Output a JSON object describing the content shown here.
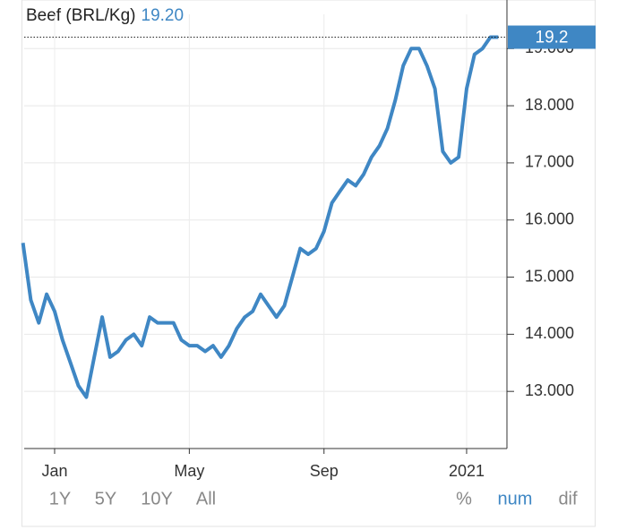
{
  "chart_data": {
    "type": "line",
    "title": "Beef (BRL/Kg)",
    "subtitle": "19.20",
    "last_label": {
      "value": 19.2,
      "label": "19.2"
    },
    "categories": [
      null,
      null,
      null,
      null,
      "Jan",
      null,
      null,
      null,
      null,
      null,
      null,
      null,
      null,
      null,
      null,
      null,
      null,
      null,
      null,
      null,
      null,
      "May",
      null,
      null,
      null,
      null,
      null,
      null,
      null,
      null,
      null,
      null,
      null,
      null,
      null,
      null,
      null,
      null,
      "Sep",
      null,
      null,
      null,
      null,
      null,
      null,
      null,
      null,
      null,
      null,
      null,
      null,
      null,
      null,
      null,
      null,
      null,
      "2021",
      null,
      null,
      null,
      null
    ],
    "series": [
      {
        "name": "Beef (BRL/Kg)",
        "color": "#3f87c4",
        "values": [
          15.6,
          14.6,
          14.2,
          14.7,
          14.4,
          13.9,
          13.5,
          13.1,
          12.9,
          13.6,
          14.3,
          13.6,
          13.7,
          13.9,
          14.0,
          13.8,
          14.3,
          14.2,
          14.2,
          14.2,
          13.9,
          13.8,
          13.8,
          13.7,
          13.8,
          13.6,
          13.8,
          14.1,
          14.3,
          14.4,
          14.7,
          14.5,
          14.3,
          14.5,
          15.0,
          15.5,
          15.4,
          15.5,
          15.8,
          16.3,
          16.5,
          16.7,
          16.6,
          16.8,
          17.1,
          17.3,
          17.6,
          18.1,
          18.7,
          19.0,
          19.0,
          18.7,
          18.3,
          17.2,
          17.0,
          17.1,
          18.3,
          18.9,
          19.0,
          19.2,
          19.2
        ]
      }
    ],
    "ylim": [
      12.0,
      19.6
    ],
    "yticks": [
      {
        "value": 13,
        "label": "13.000"
      },
      {
        "value": 14,
        "label": "14.000"
      },
      {
        "value": 15,
        "label": "15.000"
      },
      {
        "value": 16,
        "label": "16.000"
      },
      {
        "value": 17,
        "label": "17.000"
      },
      {
        "value": 18,
        "label": "18.000"
      },
      {
        "value": 19,
        "label": "19.000"
      }
    ],
    "grid": true
  },
  "controls": {
    "ranges": [
      "1Y",
      "5Y",
      "10Y",
      "All"
    ],
    "modes": [
      "%",
      "num",
      "dif"
    ]
  }
}
